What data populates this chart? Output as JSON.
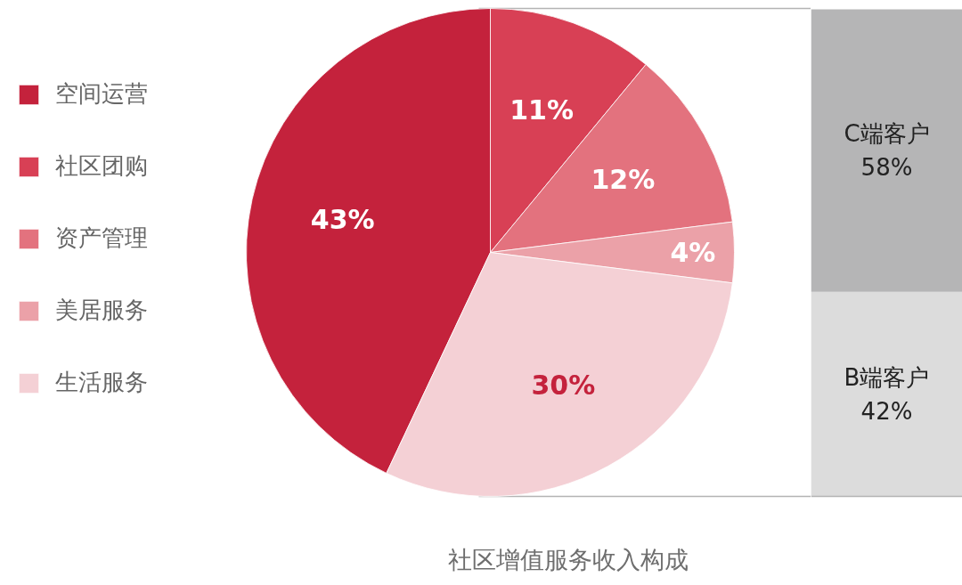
{
  "chart_data": [
    {
      "type": "pie",
      "title": "社区增值服务收入构成",
      "categories": [
        "空间运营",
        "社区团购",
        "资产管理",
        "美居服务",
        "生活服务"
      ],
      "values": [
        43,
        11,
        12,
        4,
        30
      ],
      "value_labels": [
        "43%",
        "11%",
        "12%",
        "4%",
        "30%"
      ],
      "colors": [
        "#c4223c",
        "#d84055",
        "#e3727e",
        "#eba1a8",
        "#f4d0d5"
      ],
      "legend": "left"
    },
    {
      "type": "bar",
      "stacked": true,
      "categories": [
        null
      ],
      "series": [
        {
          "name": "B端客户",
          "color": "#dcdcdc",
          "values": [
            42
          ],
          "value_labels": [
            "42%"
          ]
        },
        {
          "name": "C端客户",
          "color": "#b5b5b6",
          "values": [
            58
          ],
          "value_labels": [
            "58%"
          ]
        }
      ]
    }
  ]
}
